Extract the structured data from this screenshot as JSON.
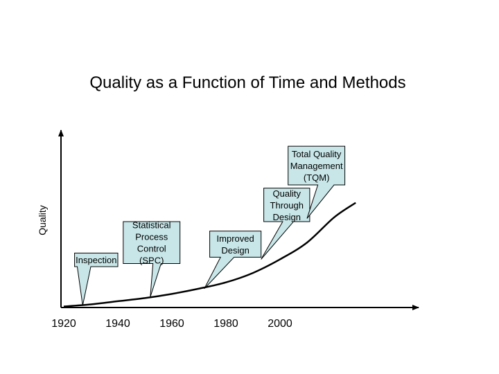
{
  "slide": {
    "title": "Quality as a Function of Time and Methods"
  },
  "chart_data": {
    "type": "line",
    "title": "Quality as a Function of Time and Methods",
    "xlabel": "",
    "ylabel": "Quality",
    "xlim": [
      1920,
      2050
    ],
    "ylim": [
      0,
      10
    ],
    "x_ticks": [
      "1920",
      "1940",
      "1960",
      "1980",
      "2000"
    ],
    "grid": false,
    "series": [
      {
        "x": [
          1920,
          1930,
          1940,
          1950,
          1960,
          1970,
          1980,
          1990,
          2000,
          2010,
          2020,
          2028
        ],
        "y": [
          0.1,
          0.3,
          0.6,
          0.9,
          1.3,
          1.8,
          2.4,
          3.3,
          4.6,
          6.2,
          8.6,
          10
        ]
      }
    ],
    "annotations": [
      {
        "name": "inspection",
        "lines": [
          "Inspection"
        ],
        "fill": "#c8e6e8",
        "box_x": [
          1924,
          1940
        ],
        "box_y": [
          3.9,
          5.2
        ],
        "pointer_base_x": [
          1925,
          1930
        ],
        "tip": [
          1927,
          0.2
        ]
      },
      {
        "name": "spc",
        "lines": [
          "Statistical",
          "Process",
          "Control",
          "(SPC)"
        ],
        "fill": "#c8e6e8",
        "box_x": [
          1942,
          1963
        ],
        "box_y": [
          4.2,
          8.2
        ],
        "pointer_base_x": [
          1953,
          1956
        ],
        "tip": [
          1952,
          1.0
        ]
      },
      {
        "name": "improved-design",
        "lines": [
          "Improved",
          "Design"
        ],
        "fill": "#c8e6e8",
        "box_x": [
          1974,
          1993
        ],
        "box_y": [
          4.8,
          7.3
        ],
        "pointer_base_x": [
          1978,
          1983
        ],
        "tip": [
          1972,
          1.8
        ]
      },
      {
        "name": "quality-through-design",
        "lines": [
          "Quality",
          "Through",
          "Design"
        ],
        "fill": "#c8e6e8",
        "box_x": [
          1994,
          2011
        ],
        "box_y": [
          8.2,
          11.4
        ],
        "pointer_base_x": [
          2001,
          2005
        ],
        "tip": [
          1993,
          4.6
        ]
      },
      {
        "name": "tqm",
        "lines": [
          "Total Quality",
          "Management",
          "(TQM)"
        ],
        "fill": "#c8e6e8",
        "box_x": [
          2003,
          2024
        ],
        "box_y": [
          11.7,
          15.4
        ],
        "pointer_base_x": [
          2014,
          2020
        ],
        "tip": [
          2010,
          8.5
        ]
      }
    ]
  }
}
